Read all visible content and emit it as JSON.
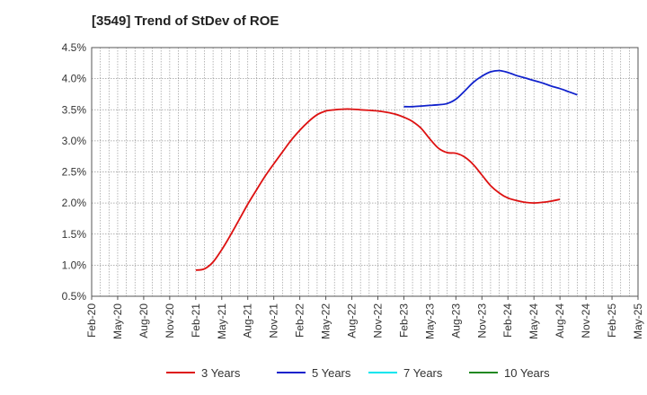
{
  "chart_data": {
    "type": "line",
    "title": "[3549]  Trend of StDev of ROE",
    "xlabel": "",
    "ylabel": "",
    "x_tick_labels": [
      "Feb-20",
      "May-20",
      "Aug-20",
      "Nov-20",
      "Feb-21",
      "May-21",
      "Aug-21",
      "Nov-21",
      "Feb-22",
      "May-22",
      "Aug-22",
      "Nov-22",
      "Feb-23",
      "May-23",
      "Aug-23",
      "Nov-23",
      "Feb-24",
      "May-24",
      "Aug-24",
      "Nov-24",
      "Feb-25",
      "May-25"
    ],
    "y_tick_labels": [
      "0.5%",
      "1.0%",
      "1.5%",
      "2.0%",
      "2.5%",
      "3.0%",
      "3.5%",
      "4.0%",
      "4.5%"
    ],
    "ylim": [
      0.5,
      4.5
    ],
    "y_unit": "%",
    "grid": true,
    "legend_position": "bottom",
    "series": [
      {
        "name": "3 Years",
        "color": "#dd1111",
        "points": [
          [
            "Feb-21",
            0.92
          ],
          [
            "Mar-21",
            0.94
          ],
          [
            "Apr-21",
            1.05
          ],
          [
            "May-21",
            1.25
          ],
          [
            "Jun-21",
            1.48
          ],
          [
            "Jul-21",
            1.73
          ],
          [
            "Aug-21",
            1.98
          ],
          [
            "Sep-21",
            2.21
          ],
          [
            "Oct-21",
            2.43
          ],
          [
            "Nov-21",
            2.63
          ],
          [
            "Dec-21",
            2.82
          ],
          [
            "Jan-22",
            3.01
          ],
          [
            "Feb-22",
            3.17
          ],
          [
            "Mar-22",
            3.31
          ],
          [
            "Apr-22",
            3.42
          ],
          [
            "May-22",
            3.48
          ],
          [
            "Jun-22",
            3.5
          ],
          [
            "Jul-22",
            3.51
          ],
          [
            "Aug-22",
            3.51
          ],
          [
            "Sep-22",
            3.5
          ],
          [
            "Oct-22",
            3.49
          ],
          [
            "Nov-22",
            3.48
          ],
          [
            "Dec-22",
            3.46
          ],
          [
            "Jan-23",
            3.43
          ],
          [
            "Feb-23",
            3.38
          ],
          [
            "Mar-23",
            3.31
          ],
          [
            "Apr-23",
            3.2
          ],
          [
            "May-23",
            3.03
          ],
          [
            "Jun-23",
            2.88
          ],
          [
            "Jul-23",
            2.81
          ],
          [
            "Aug-23",
            2.8
          ],
          [
            "Sep-23",
            2.74
          ],
          [
            "Oct-23",
            2.62
          ],
          [
            "Nov-23",
            2.45
          ],
          [
            "Dec-23",
            2.28
          ],
          [
            "Jan-24",
            2.16
          ],
          [
            "Feb-24",
            2.08
          ],
          [
            "Mar-24",
            2.04
          ],
          [
            "Apr-24",
            2.01
          ],
          [
            "May-24",
            2.0
          ],
          [
            "Jun-24",
            2.01
          ],
          [
            "Jul-24",
            2.03
          ],
          [
            "Aug-24",
            2.06
          ]
        ]
      },
      {
        "name": "5 Years",
        "color": "#1122cc",
        "points": [
          [
            "Feb-23",
            3.55
          ],
          [
            "Mar-23",
            3.55
          ],
          [
            "Apr-23",
            3.56
          ],
          [
            "May-23",
            3.57
          ],
          [
            "Jun-23",
            3.58
          ],
          [
            "Jul-23",
            3.6
          ],
          [
            "Aug-23",
            3.67
          ],
          [
            "Sep-23",
            3.8
          ],
          [
            "Oct-23",
            3.94
          ],
          [
            "Nov-23",
            4.04
          ],
          [
            "Dec-23",
            4.11
          ],
          [
            "Jan-24",
            4.13
          ],
          [
            "Feb-24",
            4.1
          ],
          [
            "Mar-24",
            4.05
          ],
          [
            "Apr-24",
            4.01
          ],
          [
            "May-24",
            3.97
          ],
          [
            "Jun-24",
            3.93
          ],
          [
            "Jul-24",
            3.88
          ],
          [
            "Aug-24",
            3.84
          ],
          [
            "Sep-24",
            3.79
          ],
          [
            "Oct-24",
            3.74
          ]
        ]
      },
      {
        "name": "7 Years",
        "color": "#00e5ee",
        "points": []
      },
      {
        "name": "10 Years",
        "color": "#228822",
        "points": []
      }
    ]
  }
}
